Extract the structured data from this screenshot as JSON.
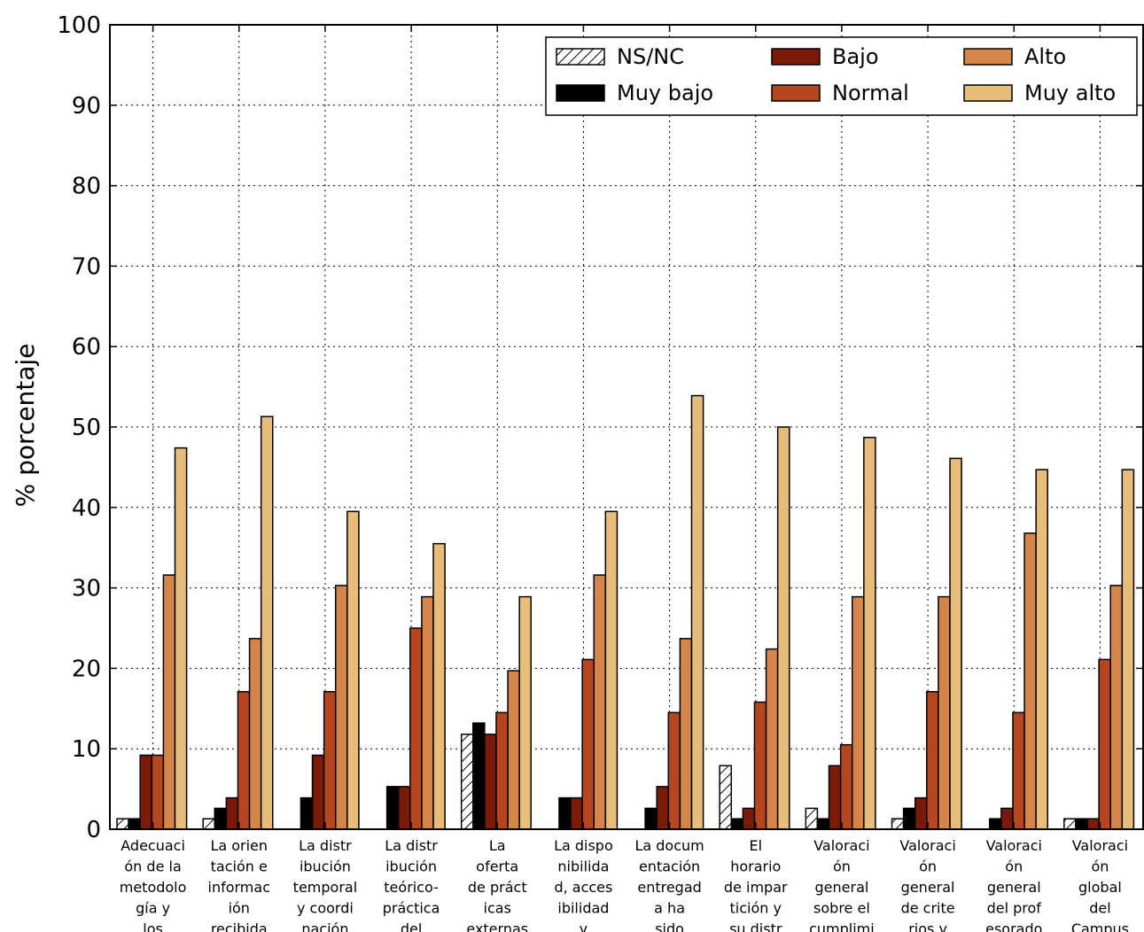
{
  "chart_data": {
    "type": "bar",
    "ylabel": "% porcentaje",
    "ylim": [
      0,
      100
    ],
    "yticks": [
      0,
      10,
      20,
      30,
      40,
      50,
      60,
      70,
      80,
      90,
      100
    ],
    "grid": true,
    "legend_position": "top-right",
    "categories": [
      [
        "Adecuaci",
        "ón de la",
        "metodolo",
        "gía y",
        "los"
      ],
      [
        "La orien",
        "tación e",
        "informac",
        "ión",
        "recibida"
      ],
      [
        "La distr",
        "ibución",
        "temporal",
        "y coordi",
        "nación"
      ],
      [
        "La distr",
        "ibución",
        "teórico-",
        "práctica",
        "del"
      ],
      [
        "La",
        "oferta",
        "de práct",
        "icas",
        "externas"
      ],
      [
        "La dispo",
        "nibilida",
        "d, acces",
        "ibilidad",
        "y"
      ],
      [
        "La docum",
        "entación",
        "entregad",
        "a ha",
        "sido"
      ],
      [
        "El",
        "horario",
        "de impar",
        "tición y",
        "su distr"
      ],
      [
        "Valoraci",
        "ón",
        "general",
        "sobre el",
        "cumplimi"
      ],
      [
        "Valoraci",
        "ón",
        "general",
        "de crite",
        "rios y"
      ],
      [
        "Valoraci",
        "ón",
        "general",
        "del prof",
        "esorado"
      ],
      [
        "Valoraci",
        "ón",
        "global",
        "del",
        "Campus"
      ]
    ],
    "series": [
      {
        "name": "NS/NC",
        "color": "#ffffff",
        "hatch": true,
        "values": [
          1.3,
          1.3,
          0,
          0,
          11.8,
          0,
          0,
          7.9,
          2.6,
          1.3,
          0,
          1.3
        ]
      },
      {
        "name": "Muy bajo",
        "color": "#000000",
        "values": [
          1.3,
          2.6,
          3.9,
          5.3,
          13.2,
          3.9,
          2.6,
          1.3,
          1.3,
          2.6,
          1.3,
          1.3
        ]
      },
      {
        "name": "Bajo",
        "color": "#7a1a08",
        "values": [
          9.2,
          3.9,
          9.2,
          5.3,
          11.8,
          3.9,
          5.3,
          2.6,
          7.9,
          3.9,
          2.6,
          1.3
        ]
      },
      {
        "name": "Normal",
        "color": "#b5461f",
        "values": [
          9.2,
          17.1,
          17.1,
          25.0,
          14.5,
          21.1,
          14.5,
          15.8,
          10.5,
          17.1,
          14.5,
          21.1
        ]
      },
      {
        "name": "Alto",
        "color": "#d4854a",
        "values": [
          31.6,
          23.7,
          30.3,
          28.9,
          19.7,
          31.6,
          23.7,
          22.4,
          28.9,
          28.9,
          36.8,
          30.3
        ]
      },
      {
        "name": "Muy alto",
        "color": "#e8bd7a",
        "values": [
          47.4,
          51.3,
          39.5,
          35.5,
          28.9,
          39.5,
          53.9,
          50.0,
          48.7,
          46.1,
          44.7,
          44.7
        ]
      }
    ]
  }
}
